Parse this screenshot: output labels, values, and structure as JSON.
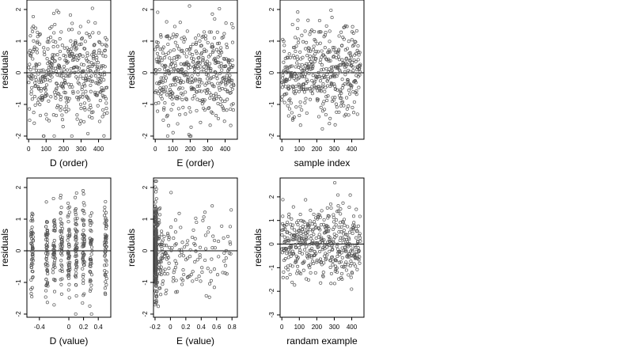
{
  "chart_data": [
    {
      "type": "scatter",
      "xlabel": "D (order)",
      "ylabel": "residuals",
      "xlim": [
        -10,
        470
      ],
      "ylim": [
        -2.1,
        2.3
      ],
      "xticks": [
        0,
        100,
        200,
        300,
        400
      ],
      "yticks": [
        -2,
        -1,
        0,
        1,
        2
      ],
      "reference_line_y": 0,
      "grid": false,
      "x_generator": "index",
      "n_points": 450,
      "pattern": "periodic",
      "y_range": [
        -2.0,
        2.2
      ]
    },
    {
      "type": "scatter",
      "xlabel": "E (order)",
      "ylabel": "residuals",
      "xlim": [
        -10,
        470
      ],
      "ylim": [
        -2.1,
        2.3
      ],
      "xticks": [
        0,
        100,
        200,
        300,
        400
      ],
      "yticks": [
        -2,
        -1,
        0,
        1,
        2
      ],
      "reference_line_y": 0,
      "grid": false,
      "x_generator": "index",
      "n_points": 450,
      "pattern": "uniform",
      "y_range": [
        -2.0,
        2.2
      ]
    },
    {
      "type": "scatter",
      "xlabel": "sample index",
      "ylabel": "residuals",
      "xlim": [
        -10,
        470
      ],
      "ylim": [
        -2.1,
        2.3
      ],
      "xticks": [
        0,
        100,
        200,
        300,
        400
      ],
      "yticks": [
        -2,
        -1,
        0,
        1,
        2
      ],
      "reference_line_y": 0,
      "grid": false,
      "x_generator": "index",
      "n_points": 450,
      "pattern": "uniform",
      "y_range": [
        -2.0,
        2.2
      ]
    },
    {
      "type": "scatter",
      "xlabel": "D (value)",
      "ylabel": "residuals",
      "xlim": [
        -0.57,
        0.57
      ],
      "ylim": [
        -2.1,
        2.3
      ],
      "xticks": [
        -0.4,
        0.0,
        0.2,
        0.4
      ],
      "yticks": [
        -2,
        -1,
        0,
        1,
        2
      ],
      "reference_line_y": 0,
      "grid": false,
      "x_generator": "discrete_d",
      "x_levels": [
        -0.5,
        -0.3,
        -0.2,
        -0.1,
        0.0,
        0.1,
        0.2,
        0.3,
        0.5
      ],
      "n_points": 450,
      "y_range": [
        -2.0,
        2.2
      ]
    },
    {
      "type": "scatter",
      "xlabel": "E (value)",
      "ylabel": "residuals",
      "xlim": [
        -0.22,
        0.87
      ],
      "ylim": [
        -2.1,
        2.3
      ],
      "xticks": [
        -0.2,
        0.0,
        0.2,
        0.4,
        0.6,
        0.8
      ],
      "yticks": [
        -2,
        -1,
        0,
        1,
        2
      ],
      "reference_line_y": 0,
      "grid": false,
      "x_generator": "skewed_e",
      "n_points": 450,
      "y_range": [
        -2.0,
        2.2
      ]
    },
    {
      "type": "scatter",
      "xlabel": "randam example",
      "ylabel": "residuals",
      "xlim": [
        -10,
        470
      ],
      "ylim": [
        -3.1,
        2.8
      ],
      "xticks": [
        0,
        100,
        200,
        300,
        400
      ],
      "yticks": [
        -3,
        -2,
        -1,
        0,
        1,
        2
      ],
      "reference_line_y": 0,
      "grid": false,
      "x_generator": "index",
      "n_points": 450,
      "pattern": "uniform",
      "y_range": [
        -2.8,
        2.6
      ]
    }
  ]
}
